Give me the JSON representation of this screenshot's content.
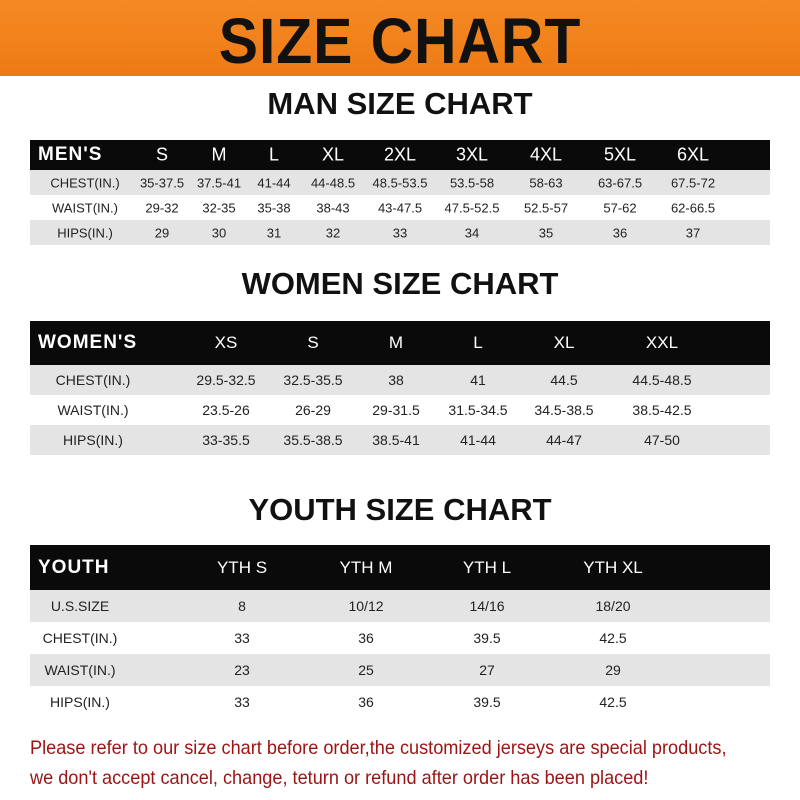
{
  "banner": {
    "title": "SIZE CHART",
    "color": "#f0801c"
  },
  "men": {
    "title": "MAN SIZE CHART",
    "header": [
      "MEN'S",
      "S",
      "M",
      "L",
      "XL",
      "2XL",
      "3XL",
      "4XL",
      "5XL",
      "6XL"
    ],
    "rows": [
      [
        "CHEST(IN.)",
        "35-37.5",
        "37.5-41",
        "41-44",
        "44-48.5",
        "48.5-53.5",
        "53.5-58",
        "58-63",
        "63-67.5",
        "67.5-72"
      ],
      [
        "WAIST(IN.)",
        "29-32",
        "32-35",
        "35-38",
        "38-43",
        "43-47.5",
        "47.5-52.5",
        "52.5-57",
        "57-62",
        "62-66.5"
      ],
      [
        "HIPS(IN.)",
        "29",
        "30",
        "31",
        "32",
        "33",
        "34",
        "35",
        "36",
        "37"
      ]
    ]
  },
  "women": {
    "title": "WOMEN SIZE CHART",
    "header": [
      "WOMEN'S",
      "XS",
      "S",
      "M",
      "L",
      "XL",
      "XXL"
    ],
    "rows": [
      [
        "CHEST(IN.)",
        "29.5-32.5",
        "32.5-35.5",
        "38",
        "41",
        "44.5",
        "44.5-48.5"
      ],
      [
        "WAIST(IN.)",
        "23.5-26",
        "26-29",
        "29-31.5",
        "31.5-34.5",
        "34.5-38.5",
        "38.5-42.5"
      ],
      [
        "HIPS(IN.)",
        "33-35.5",
        "35.5-38.5",
        "38.5-41",
        "41-44",
        "44-47",
        "47-50"
      ]
    ]
  },
  "youth": {
    "title": "YOUTH SIZE CHART",
    "header": [
      "YOUTH",
      "YTH S",
      "YTH M",
      "YTH L",
      "YTH XL"
    ],
    "rows": [
      [
        "U.S.SIZE",
        "8",
        "10/12",
        "14/16",
        "18/20"
      ],
      [
        "CHEST(IN.)",
        "33",
        "36",
        "39.5",
        "42.5"
      ],
      [
        "WAIST(IN.)",
        "23",
        "25",
        "27",
        "29"
      ],
      [
        "HIPS(IN.)",
        "33",
        "36",
        "39.5",
        "42.5"
      ]
    ]
  },
  "note": {
    "line1": "Please refer to our size chart before order,the customized jerseys are special products,",
    "line2": "we don't accept cancel, change, teturn or refund after order has been placed!",
    "color": "#9b1414"
  }
}
